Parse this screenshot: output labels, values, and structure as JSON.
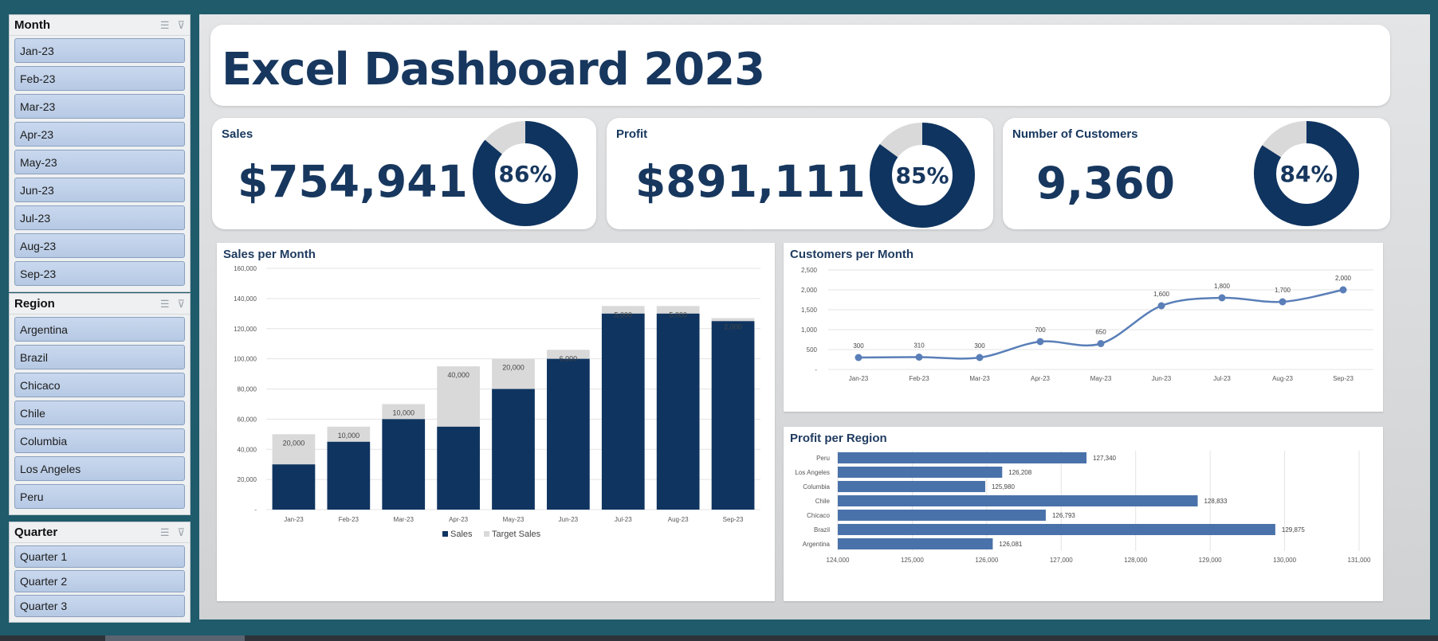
{
  "slicers": {
    "month": {
      "title": "Month",
      "items": [
        "Jan-23",
        "Feb-23",
        "Mar-23",
        "Apr-23",
        "May-23",
        "Jun-23",
        "Jul-23",
        "Aug-23",
        "Sep-23"
      ]
    },
    "region": {
      "title": "Region",
      "items": [
        "Argentina",
        "Brazil",
        "Chicaco",
        "Chile",
        "Columbia",
        "Los Angeles",
        "Peru"
      ]
    },
    "quarter": {
      "title": "Quarter",
      "items": [
        "Quarter 1",
        "Quarter 2",
        "Quarter 3"
      ]
    }
  },
  "dashboard": {
    "title": "Excel Dashboard 2023"
  },
  "kpis": {
    "sales": {
      "label": "Sales",
      "value": "$754,941",
      "pct_label": "86%",
      "pct": 0.86
    },
    "profit": {
      "label": "Profit",
      "value": "$891,111",
      "pct_label": "85%",
      "pct": 0.85
    },
    "customers": {
      "label": "Number of Customers",
      "value": "9,360",
      "pct_label": "84%",
      "pct": 0.84
    }
  },
  "colors": {
    "navy": "#0f3460",
    "gray": "#d9d9d9",
    "line": "#5a7fb8",
    "barh": "#4a72aa"
  },
  "chart_data": [
    {
      "type": "bar",
      "title": "Sales per Month",
      "stacked": true,
      "categories": [
        "Jan-23",
        "Feb-23",
        "Mar-23",
        "Apr-23",
        "May-23",
        "Jun-23",
        "Jul-23",
        "Aug-23",
        "Sep-23"
      ],
      "series": [
        {
          "name": "Sales",
          "values": [
            30000,
            45000,
            60000,
            55000,
            80000,
            100000,
            130000,
            130000,
            125000
          ]
        },
        {
          "name": "Target Sales",
          "values": [
            20000,
            10000,
            10000,
            40000,
            20000,
            6000,
            5000,
            5000,
            2000
          ]
        }
      ],
      "data_labels": [
        "20,000",
        "10,000",
        "10,000",
        "40,000",
        "20,000",
        "6,000",
        "5,000",
        "5,000",
        "2,000"
      ],
      "yticks": [
        "-",
        "20,000",
        "40,000",
        "60,000",
        "80,000",
        "100,000",
        "120,000",
        "140,000",
        "160,000"
      ],
      "ylim": [
        0,
        160000
      ],
      "legend": "bottom"
    },
    {
      "type": "line",
      "title": "Customers per Month",
      "categories": [
        "Jan-23",
        "Feb-23",
        "Mar-23",
        "Apr-23",
        "May-23",
        "Jun-23",
        "Jul-23",
        "Aug-23",
        "Sep-23"
      ],
      "values": [
        300,
        310,
        300,
        700,
        650,
        1600,
        1800,
        1700,
        2000
      ],
      "data_labels": [
        "300",
        "310",
        "300",
        "700",
        "650",
        "1,600",
        "1,800",
        "1,700",
        "2,000"
      ],
      "yticks": [
        "-",
        "500",
        "1,000",
        "1,500",
        "2,000",
        "2,500"
      ],
      "ylim": [
        0,
        2500
      ]
    },
    {
      "type": "bar",
      "orientation": "horizontal",
      "title": "Profit per Region",
      "categories": [
        "Peru",
        "Los Angeles",
        "Columbia",
        "Chile",
        "Chicaco",
        "Brazil",
        "Argentina"
      ],
      "values": [
        127340,
        126208,
        125980,
        128833,
        126793,
        129875,
        126081
      ],
      "data_labels": [
        "127,340",
        "126,208",
        "125,980",
        "128,833",
        "126,793",
        "129,875",
        "126,081"
      ],
      "xticks": [
        "124,000",
        "125,000",
        "126,000",
        "127,000",
        "128,000",
        "129,000",
        "130,000",
        "131,000"
      ],
      "xlim": [
        124000,
        131000
      ]
    }
  ]
}
